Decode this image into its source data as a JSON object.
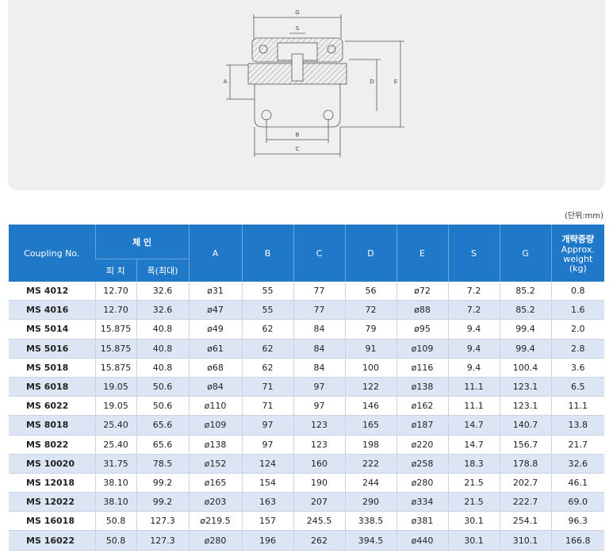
{
  "drawing": {
    "labels": {
      "G": "G",
      "S": "S",
      "A": "A",
      "D": "D",
      "E": "E",
      "B": "B",
      "C": "C"
    }
  },
  "unit": "(단위:mm)",
  "table": {
    "header": {
      "coupling": "Coupling No.",
      "chain": "체 인",
      "pitch": "피 치",
      "width": "폭(최대)",
      "A": "A",
      "B": "B",
      "C": "C",
      "D": "D",
      "E": "E",
      "S": "S",
      "G": "G",
      "weight_ko": "개략중량",
      "weight_en": "Approx. weight (kg)"
    },
    "rows": [
      [
        "MS 4012",
        "12.70",
        "32.6",
        "ø31",
        "55",
        "77",
        "56",
        "ø72",
        "7.2",
        "85.2",
        "0.8"
      ],
      [
        "MS 4016",
        "12.70",
        "32.6",
        "ø47",
        "55",
        "77",
        "72",
        "ø88",
        "7.2",
        "85.2",
        "1.6"
      ],
      [
        "MS 5014",
        "15.875",
        "40.8",
        "ø49",
        "62",
        "84",
        "79",
        "ø95",
        "9.4",
        "99.4",
        "2.0"
      ],
      [
        "MS 5016",
        "15.875",
        "40.8",
        "ø61",
        "62",
        "84",
        "91",
        "ø109",
        "9.4",
        "99.4",
        "2.8"
      ],
      [
        "MS 5018",
        "15.875",
        "40.8",
        "ø68",
        "62",
        "84",
        "100",
        "ø116",
        "9.4",
        "100.4",
        "3.6"
      ],
      [
        "MS 6018",
        "19.05",
        "50.6",
        "ø84",
        "71",
        "97",
        "122",
        "ø138",
        "11.1",
        "123.1",
        "6.5"
      ],
      [
        "MS 6022",
        "19.05",
        "50.6",
        "ø110",
        "71",
        "97",
        "146",
        "ø162",
        "11.1",
        "123.1",
        "11.1"
      ],
      [
        "MS 8018",
        "25.40",
        "65.6",
        "ø109",
        "97",
        "123",
        "165",
        "ø187",
        "14.7",
        "140.7",
        "13.8"
      ],
      [
        "MS 8022",
        "25.40",
        "65.6",
        "ø138",
        "97",
        "123",
        "198",
        "ø220",
        "14.7",
        "156.7",
        "21.7"
      ],
      [
        "MS 10020",
        "31.75",
        "78.5",
        "ø152",
        "124",
        "160",
        "222",
        "ø258",
        "18.3",
        "178.8",
        "32.6"
      ],
      [
        "MS 12018",
        "38.10",
        "99.2",
        "ø165",
        "154",
        "190",
        "244",
        "ø280",
        "21.5",
        "202.7",
        "46.1"
      ],
      [
        "MS 12022",
        "38.10",
        "99.2",
        "ø203",
        "163",
        "207",
        "290",
        "ø334",
        "21.5",
        "222.7",
        "69.0"
      ],
      [
        "MS 16018",
        "50.8",
        "127.3",
        "ø219.5",
        "157",
        "245.5",
        "338.5",
        "ø381",
        "30.1",
        "254.1",
        "96.3"
      ],
      [
        "MS 16022",
        "50.8",
        "127.3",
        "ø280",
        "196",
        "262",
        "394.5",
        "ø440",
        "30.1",
        "310.1",
        "166.8"
      ]
    ]
  }
}
